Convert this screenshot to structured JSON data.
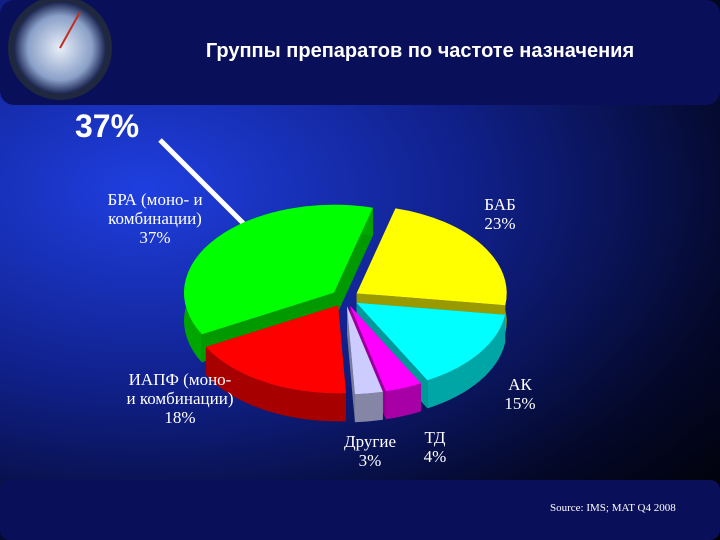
{
  "chart_data": {
    "type": "pie3d",
    "title": "Группы препаратов по частоте назначения",
    "annotation": "37%",
    "source": "Source:  IMS; MAT Q4 2008",
    "categories": [
      "БАБ",
      "АК",
      "ТД",
      "Другие",
      "ИАПФ (моно- и комбинации)",
      "БРА (моно- и комбинации)"
    ],
    "values": [
      23,
      15,
      4,
      3,
      18,
      37
    ],
    "value_labels": [
      "23%",
      "15%",
      "4%",
      "3%",
      "18%",
      "37%"
    ],
    "colors": [
      "#ffff00",
      "#00ffff",
      "#ff00ff",
      "#ccccff",
      "#ff0000",
      "#00ff00"
    ]
  }
}
